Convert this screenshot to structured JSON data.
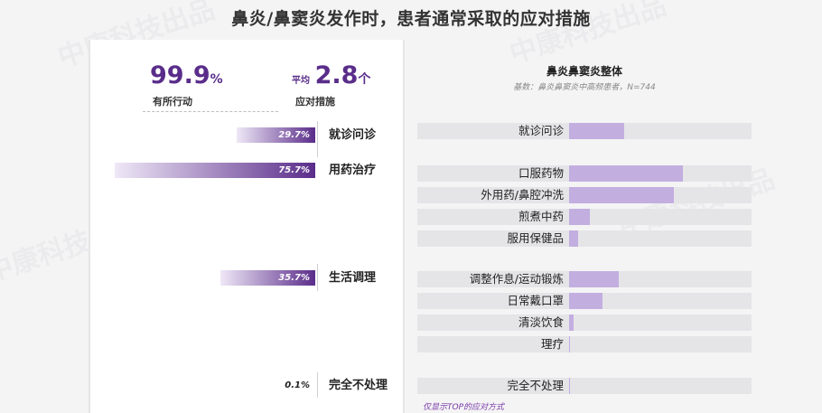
{
  "page": {
    "title": "鼻炎/鼻窦炎发作时，患者通常采取的应对措施",
    "footnote": "仅显示TOP的应对方式"
  },
  "watermark": "中康科技出品",
  "stats": {
    "action": {
      "value": "99.9",
      "unit": "%",
      "label": "有所行动"
    },
    "measures": {
      "prefix": "平均",
      "value": "2.8",
      "unit": "个",
      "label": "应对措施"
    }
  },
  "colors": {
    "accent": "#5a2d8a",
    "bar_light": "#c3aee0",
    "track": "#e5e5e8"
  },
  "chart_data": [
    {
      "type": "bar",
      "orientation": "horizontal",
      "categories": [
        "就诊问诊",
        "用药治疗",
        "生活调理",
        "完全不处理"
      ],
      "values": [
        29.7,
        75.7,
        35.7,
        0.1
      ],
      "value_labels": [
        "29.7%",
        "75.7%",
        "35.7%",
        "0.1%"
      ],
      "unit": "%",
      "xlim": [
        0,
        100
      ],
      "direction": "right-to-left"
    },
    {
      "type": "bar",
      "orientation": "horizontal",
      "title": "鼻炎鼻窦炎整体",
      "subtitle": "基数：鼻炎鼻窦炎中高频患者，N=744",
      "categories": [
        "就诊问诊",
        "口服药物",
        "外用药/鼻腔冲洗",
        "煎煮中药",
        "服用保健品",
        "调整作息/运动锻炼",
        "日常戴口罩",
        "清淡饮食",
        "理疗",
        "完全不处理"
      ],
      "values": [
        29.7,
        61.5,
        56.8,
        11.2,
        5.0,
        26.8,
        17.9,
        2.6,
        0.5,
        0.1
      ],
      "unit": "%",
      "xlim": [
        0,
        100
      ]
    }
  ]
}
